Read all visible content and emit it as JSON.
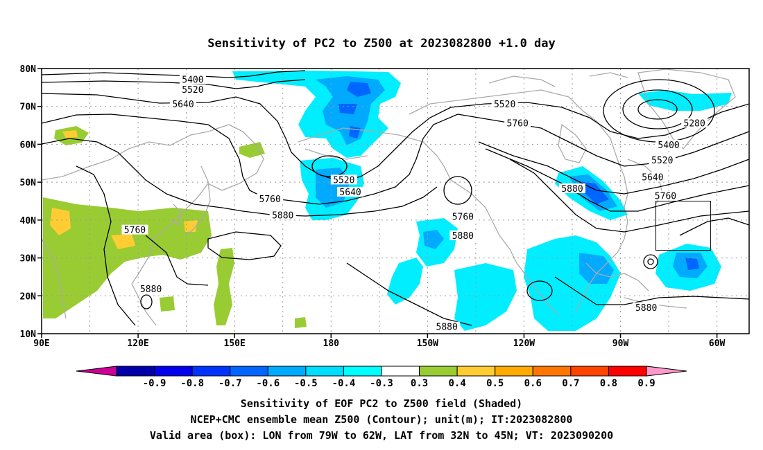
{
  "title": "Sensitivity of PC2 to Z500 at 2023082800 +1.0 day",
  "map": {
    "lon_range": [
      90,
      310
    ],
    "lat_range": [
      10,
      80
    ],
    "lat_ticks": [
      {
        "lat": 80,
        "label": "80N"
      },
      {
        "lat": 70,
        "label": "70N"
      },
      {
        "lat": 60,
        "label": "60N"
      },
      {
        "lat": 50,
        "label": "50N"
      },
      {
        "lat": 40,
        "label": "40N"
      },
      {
        "lat": 30,
        "label": "30N"
      },
      {
        "lat": 20,
        "label": "20N"
      },
      {
        "lat": 10,
        "label": "10N"
      }
    ],
    "lon_ticks": [
      {
        "lon": 90,
        "label": "90E"
      },
      {
        "lon": 120,
        "label": "120E"
      },
      {
        "lon": 150,
        "label": "150E"
      },
      {
        "lon": 180,
        "label": "180"
      },
      {
        "lon": 210,
        "label": "150W"
      },
      {
        "lon": 240,
        "label": "120W"
      },
      {
        "lon": 270,
        "label": "90W"
      },
      {
        "lon": 300,
        "label": "60W"
      }
    ],
    "grid_lines": true,
    "colors": {
      "neg_09": "#0000aa",
      "neg_08": "#0000dd",
      "neg_07": "#0033ff",
      "neg_06": "#0066ff",
      "neg_05": "#00aaff",
      "neg_04": "#00eeff",
      "pos_03": "#99cc33",
      "pos_04": "#ffcc33",
      "pos_05": "#ffaa00",
      "coast": "#aaaaaa"
    },
    "contour_labels": [
      {
        "text": "5400",
        "lon": 137,
        "lat": 77
      },
      {
        "text": "5520",
        "lon": 137,
        "lat": 74.3
      },
      {
        "text": "5640",
        "lon": 134,
        "lat": 70.5
      },
      {
        "text": "5520",
        "lon": 234,
        "lat": 70.5
      },
      {
        "text": "5760",
        "lon": 238,
        "lat": 65.5
      },
      {
        "text": "5280",
        "lon": 293,
        "lat": 65.5
      },
      {
        "text": "5400",
        "lon": 285,
        "lat": 59.7
      },
      {
        "text": "5520",
        "lon": 283,
        "lat": 55.7
      },
      {
        "text": "5640",
        "lon": 280,
        "lat": 51.2
      },
      {
        "text": "5760",
        "lon": 284,
        "lat": 46.3
      },
      {
        "text": "5880",
        "lon": 255,
        "lat": 48.2
      },
      {
        "text": "5520",
        "lon": 184,
        "lat": 50.5
      },
      {
        "text": "5640",
        "lon": 186,
        "lat": 47.3
      },
      {
        "text": "5760",
        "lon": 161,
        "lat": 45.5
      },
      {
        "text": "5880",
        "lon": 165,
        "lat": 41.2
      },
      {
        "text": "5760",
        "lon": 221,
        "lat": 40.8
      },
      {
        "text": "5880",
        "lon": 221,
        "lat": 35.8
      },
      {
        "text": "5760",
        "lon": 119,
        "lat": 37.3
      },
      {
        "text": "5880",
        "lon": 124,
        "lat": 21.7
      },
      {
        "text": "5880",
        "lon": 216,
        "lat": 11.7
      },
      {
        "text": "5880",
        "lon": 278,
        "lat": 16.8
      }
    ],
    "valid_box": {
      "lon_min": 281,
      "lon_max": 298,
      "lat_min": 32,
      "lat_max": 45
    }
  },
  "colorbar": {
    "labels": [
      "-0.9",
      "-0.8",
      "-0.7",
      "-0.6",
      "-0.5",
      "-0.4",
      "-0.3",
      "0.3",
      "0.4",
      "0.5",
      "0.6",
      "0.7",
      "0.8",
      "0.9"
    ],
    "colors": [
      "#0000aa",
      "#0000ee",
      "#0033ff",
      "#0066ff",
      "#00aaff",
      "#00ddff",
      "#00ffff",
      "#ffffff",
      "#99cc33",
      "#ffcc33",
      "#ffaa00",
      "#ff7700",
      "#ff4400",
      "#ff0000"
    ],
    "low_end": "#cc0099",
    "high_end": "#ff99cc"
  },
  "footer": {
    "line1": "Sensitivity of EOF PC2 to Z500 field (Shaded)",
    "line2": "NCEP+CMC ensemble mean Z500 (Contour); unit(m); IT:2023082800",
    "line3": "Valid area (box): LON from 79W to 62W, LAT from 32N to 45N; VT: 2023090200"
  }
}
